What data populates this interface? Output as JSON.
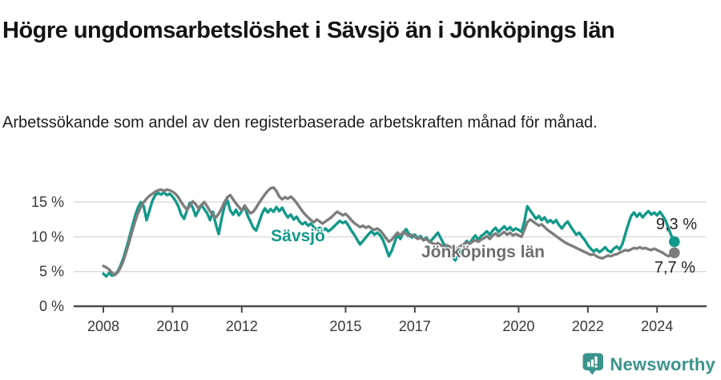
{
  "header": {
    "title": "Högre ungdomsarbetslöshet i Sävsjö än i Jönköpings län",
    "subtitle": "Arbetssökande som andel av den registerbaserade arbetskraften månad för månad."
  },
  "footer": {
    "brand": "Newsworthy",
    "logo_icon": "newsworthy-speech-bubble-barchart-icon",
    "brand_color": "#3b948c"
  },
  "chart_data": {
    "type": "line",
    "title": "Högre ungdomsarbetslöshet i Sävsjö än i Jönköpings län",
    "subtitle": "Arbetssökande som andel av den registerbaserade arbetskraften månad för månad.",
    "x_unit": "year-month",
    "x_start": 2008.0,
    "x_step": 0.0833333,
    "x_ticks": [
      "2008",
      "2010",
      "2012",
      "2015",
      "2017",
      "2020",
      "2022",
      "2024"
    ],
    "x_tick_years": [
      2008,
      2010,
      2012,
      2015,
      2017,
      2020,
      2022,
      2024
    ],
    "y_ticks": [
      "0 %",
      "5 %",
      "10 %",
      "15 %"
    ],
    "y_tick_values": [
      0,
      5,
      10,
      15
    ],
    "ylim": [
      0,
      17.5
    ],
    "grid": true,
    "legend_position": "inline-labels",
    "series": [
      {
        "name": "Sävsjö",
        "color": "#13998a",
        "end_label": "9,3 %",
        "end_value": 9.3,
        "values": [
          4.7,
          4.3,
          4.8,
          4.4,
          4.6,
          5.0,
          5.9,
          7.0,
          8.4,
          9.9,
          11.5,
          13.0,
          14.2,
          15.0,
          14.4,
          12.4,
          13.8,
          15.2,
          16.0,
          16.3,
          16.1,
          16.4,
          16.0,
          16.2,
          15.8,
          15.2,
          14.4,
          13.2,
          12.6,
          13.8,
          14.9,
          14.2,
          13.0,
          13.8,
          14.6,
          14.0,
          13.4,
          12.4,
          13.6,
          11.8,
          10.4,
          12.6,
          14.4,
          15.3,
          13.8,
          13.2,
          13.9,
          13.1,
          13.7,
          14.4,
          13.1,
          12.2,
          11.3,
          10.9,
          12.1,
          13.3,
          14.1,
          13.5,
          14.0,
          13.6,
          14.3,
          13.7,
          14.2,
          13.4,
          12.8,
          13.2,
          12.5,
          12.9,
          12.2,
          11.8,
          12.1,
          11.6,
          11.9,
          11.4,
          11.0,
          11.3,
          10.9,
          11.2,
          10.8,
          11.1,
          11.5,
          11.9,
          12.3,
          12.0,
          12.2,
          11.6,
          10.9,
          10.3,
          9.6,
          8.9,
          9.4,
          9.9,
          10.4,
          10.8,
          10.3,
          10.6,
          10.2,
          9.5,
          8.4,
          7.2,
          8.0,
          9.2,
          10.3,
          9.7,
          10.6,
          11.1,
          10.4,
          9.9,
          10.3,
          9.8,
          10.1,
          9.5,
          9.9,
          9.3,
          9.6,
          10.1,
          10.6,
          9.8,
          9.0,
          8.4,
          7.8,
          7.2,
          6.6,
          7.4,
          8.2,
          8.9,
          9.4,
          9.0,
          9.7,
          10.2,
          9.6,
          10.1,
          10.4,
          10.8,
          10.3,
          10.9,
          11.3,
          10.7,
          11.1,
          11.5,
          11.0,
          11.4,
          10.9,
          11.2,
          11.0,
          10.7,
          12.2,
          14.4,
          13.8,
          13.2,
          12.6,
          13.0,
          12.4,
          12.8,
          12.1,
          12.4,
          12.0,
          12.4,
          11.7,
          11.2,
          11.8,
          12.2,
          11.5,
          10.9,
          10.3,
          10.6,
          10.0,
          9.5,
          8.8,
          8.3,
          7.9,
          8.2,
          7.8,
          8.1,
          8.5,
          8.0,
          7.8,
          8.3,
          8.6,
          8.2,
          9.0,
          10.4,
          11.8,
          13.0,
          13.5,
          12.9,
          13.4,
          12.8,
          13.3,
          13.7,
          13.2,
          13.5,
          13.1,
          13.6,
          13.0,
          12.3,
          11.2,
          10.1,
          9.3
        ]
      },
      {
        "name": "Jönköpings län",
        "color": "#7d7d7d",
        "end_label": "7,7 %",
        "end_value": 7.7,
        "values": [
          5.8,
          5.6,
          5.3,
          4.8,
          4.5,
          4.9,
          5.6,
          6.6,
          7.9,
          9.3,
          10.8,
          12.2,
          13.4,
          14.3,
          15.0,
          15.5,
          15.9,
          16.2,
          16.5,
          16.7,
          16.8,
          16.6,
          16.8,
          16.7,
          16.5,
          16.2,
          15.7,
          15.0,
          14.4,
          13.9,
          14.5,
          15.1,
          14.7,
          14.1,
          14.6,
          15.0,
          14.4,
          13.7,
          13.1,
          12.8,
          13.3,
          14.1,
          15.0,
          15.7,
          16.0,
          15.4,
          14.8,
          14.3,
          13.8,
          14.5,
          13.9,
          13.4,
          13.6,
          14.2,
          14.9,
          15.5,
          16.1,
          16.6,
          17.0,
          17.1,
          16.6,
          15.8,
          15.4,
          15.7,
          15.5,
          15.8,
          15.4,
          14.9,
          14.3,
          13.7,
          13.2,
          12.8,
          12.4,
          12.1,
          12.5,
          12.2,
          11.9,
          12.2,
          12.5,
          12.8,
          13.2,
          13.6,
          13.4,
          13.1,
          13.3,
          12.9,
          12.4,
          12.0,
          11.7,
          11.4,
          11.6,
          11.3,
          11.5,
          11.2,
          11.0,
          11.2,
          10.9,
          10.4,
          9.8,
          9.3,
          9.6,
          10.1,
          10.6,
          10.2,
          10.7,
          10.4,
          10.1,
          10.3,
          10.0,
          9.7,
          9.9,
          9.5,
          9.7,
          9.3,
          9.1,
          8.9,
          9.1,
          8.8,
          8.6,
          8.8,
          8.6,
          8.4,
          8.2,
          8.4,
          8.7,
          8.9,
          9.2,
          9.0,
          9.3,
          9.5,
          9.3,
          9.6,
          9.8,
          10.1,
          9.7,
          10.2,
          10.5,
          10.1,
          10.4,
          10.7,
          10.3,
          10.6,
          10.2,
          10.4,
          10.2,
          10.0,
          11.0,
          12.1,
          12.5,
          12.2,
          11.9,
          11.6,
          11.8,
          11.4,
          11.0,
          10.7,
          10.4,
          10.1,
          9.8,
          9.5,
          9.2,
          9.0,
          8.8,
          8.6,
          8.4,
          8.2,
          8.0,
          7.8,
          7.6,
          7.4,
          7.5,
          7.2,
          7.0,
          6.9,
          7.1,
          7.3,
          7.2,
          7.4,
          7.5,
          7.7,
          7.9,
          8.1,
          8.0,
          8.2,
          8.4,
          8.3,
          8.5,
          8.3,
          8.4,
          8.2,
          8.1,
          8.3,
          8.1,
          7.9,
          7.7,
          7.4,
          7.2,
          7.5,
          7.7
        ]
      }
    ]
  }
}
